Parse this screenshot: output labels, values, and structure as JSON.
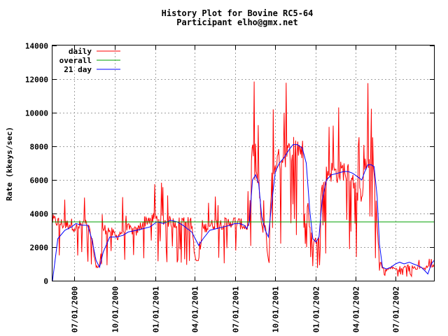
{
  "chart_data": {
    "type": "line",
    "title": "History Plot for Bovine RC5-64",
    "subtitle": "Participant elho@gmx.net",
    "ylabel": "Rate (kkeys/sec)",
    "xlabel": "",
    "xlim": [
      "2000-05-13",
      "2002-09-26"
    ],
    "ylim": [
      0,
      14000
    ],
    "yticks": [
      0,
      2000,
      4000,
      6000,
      8000,
      10000,
      12000,
      14000
    ],
    "xticks": [
      "07/01/2000",
      "10/01/2000",
      "01/01/2001",
      "04/01/2001",
      "07/01/2001",
      "10/01/2001",
      "01/01/2002",
      "04/01/2002",
      "07/01/2002"
    ],
    "grid": true,
    "legend": "top-left",
    "series": [
      {
        "name": "daily",
        "color": "#ff0000",
        "style": "noisy",
        "x": [
          "2000-05-13",
          "2000-05-25",
          "2000-06-10",
          "2000-06-25",
          "2000-07-05",
          "2000-07-20",
          "2000-08-01",
          "2000-08-10",
          "2000-08-20",
          "2000-08-28",
          "2000-09-05",
          "2000-09-20",
          "2000-10-05",
          "2000-10-20",
          "2000-11-01",
          "2000-11-20",
          "2000-12-05",
          "2000-12-20",
          "2001-01-05",
          "2001-01-20",
          "2001-02-05",
          "2001-02-20",
          "2001-03-05",
          "2001-03-15",
          "2001-03-25",
          "2001-04-02",
          "2001-04-10",
          "2001-04-20",
          "2001-05-05",
          "2001-05-20",
          "2001-06-05",
          "2001-06-20",
          "2001-07-01",
          "2001-07-12",
          "2001-07-22",
          "2001-07-28",
          "2001-08-03",
          "2001-08-10",
          "2001-08-17",
          "2001-08-24",
          "2001-08-31",
          "2001-09-08",
          "2001-09-15",
          "2001-09-22",
          "2001-10-01",
          "2001-10-10",
          "2001-10-20",
          "2001-11-01",
          "2001-11-10",
          "2001-11-20",
          "2001-12-01",
          "2001-12-10",
          "2001-12-18",
          "2001-12-25",
          "2002-01-01",
          "2002-01-08",
          "2002-01-15",
          "2002-01-25",
          "2002-02-05",
          "2002-02-20",
          "2002-03-05",
          "2002-03-15",
          "2002-03-25",
          "2002-04-05",
          "2002-04-15",
          "2002-04-22",
          "2002-04-29",
          "2002-05-06",
          "2002-05-13",
          "2002-05-20",
          "2002-05-25",
          "2002-06-01",
          "2002-06-10",
          "2002-06-20",
          "2002-07-01",
          "2002-07-10",
          "2002-07-20",
          "2002-08-01",
          "2002-08-10",
          "2002-08-20",
          "2002-08-28",
          "2002-09-05",
          "2002-09-12",
          "2002-09-20",
          "2002-09-26"
        ],
        "values": [
          3600,
          3500,
          3300,
          3400,
          3100,
          3400,
          3300,
          2500,
          800,
          900,
          3100,
          3000,
          2600,
          3000,
          3100,
          2900,
          3500,
          3700,
          3700,
          3600,
          3500,
          3400,
          3600,
          3500,
          3400,
          1200,
          1200,
          3100,
          3300,
          3400,
          3400,
          3500,
          3500,
          3400,
          3300,
          3100,
          3700,
          8000,
          6200,
          6000,
          3000,
          3200,
          1100,
          5900,
          7000,
          7200,
          7400,
          7600,
          8000,
          8000,
          7800,
          5500,
          3200,
          2200,
          2400,
          2800,
          6000,
          6300,
          6500,
          6400,
          6600,
          6400,
          6300,
          5000,
          5200,
          6600,
          7300,
          6700,
          6500,
          3200,
          1200,
          800,
          600,
          800,
          700,
          600,
          800,
          900,
          800,
          700,
          800,
          700,
          900,
          800,
          900
        ]
      },
      {
        "name": "overall",
        "color": "#00a000",
        "style": "flat",
        "x": [
          "2000-05-13",
          "2002-09-26"
        ],
        "values": [
          3500,
          3500
        ]
      },
      {
        "name": "21 day",
        "color": "#0000ff",
        "style": "smooth",
        "x": [
          "2000-05-13",
          "2000-05-25",
          "2000-06-10",
          "2000-06-25",
          "2000-07-05",
          "2000-07-20",
          "2000-08-01",
          "2000-08-10",
          "2000-08-20",
          "2000-08-28",
          "2000-09-05",
          "2000-09-20",
          "2000-10-05",
          "2000-10-20",
          "2000-11-01",
          "2000-11-20",
          "2000-12-05",
          "2000-12-20",
          "2001-01-05",
          "2001-01-20",
          "2001-02-05",
          "2001-02-20",
          "2001-03-05",
          "2001-03-15",
          "2001-03-25",
          "2001-04-02",
          "2001-04-10",
          "2001-04-20",
          "2001-05-05",
          "2001-05-20",
          "2001-06-05",
          "2001-06-20",
          "2001-07-01",
          "2001-07-12",
          "2001-07-22",
          "2001-07-28",
          "2001-08-03",
          "2001-08-10",
          "2001-08-17",
          "2001-08-24",
          "2001-08-31",
          "2001-09-08",
          "2001-09-15",
          "2001-09-22",
          "2001-10-01",
          "2001-10-10",
          "2001-10-20",
          "2001-11-01",
          "2001-11-10",
          "2001-11-20",
          "2001-12-01",
          "2001-12-10",
          "2001-12-18",
          "2001-12-25",
          "2002-01-01",
          "2002-01-08",
          "2002-01-15",
          "2002-01-25",
          "2002-02-05",
          "2002-02-20",
          "2002-03-05",
          "2002-03-15",
          "2002-03-25",
          "2002-04-05",
          "2002-04-15",
          "2002-04-22",
          "2002-04-29",
          "2002-05-06",
          "2002-05-13",
          "2002-05-20",
          "2002-05-25",
          "2002-06-01",
          "2002-06-10",
          "2002-06-20",
          "2002-07-01",
          "2002-07-10",
          "2002-07-20",
          "2002-08-01",
          "2002-08-10",
          "2002-08-20",
          "2002-08-28",
          "2002-09-05",
          "2002-09-12",
          "2002-09-20",
          "2002-09-26"
        ],
        "values": [
          0,
          2500,
          3000,
          3200,
          3400,
          3300,
          3300,
          2500,
          1200,
          800,
          1700,
          2600,
          2600,
          2700,
          2900,
          3000,
          3100,
          3200,
          3500,
          3400,
          3600,
          3500,
          3300,
          3100,
          2900,
          2500,
          2100,
          2500,
          3000,
          3100,
          3200,
          3300,
          3400,
          3400,
          3300,
          3100,
          3500,
          6000,
          6300,
          5800,
          3800,
          3000,
          2600,
          4500,
          6500,
          7000,
          7300,
          7800,
          8100,
          8100,
          7900,
          7000,
          4200,
          2500,
          2300,
          2600,
          4800,
          6000,
          6300,
          6400,
          6500,
          6500,
          6400,
          6200,
          6000,
          6500,
          6900,
          6900,
          6800,
          5000,
          2200,
          800,
          700,
          800,
          1000,
          1100,
          1000,
          1100,
          1000,
          900,
          800,
          600,
          400,
          1000,
          1200
        ]
      }
    ]
  }
}
